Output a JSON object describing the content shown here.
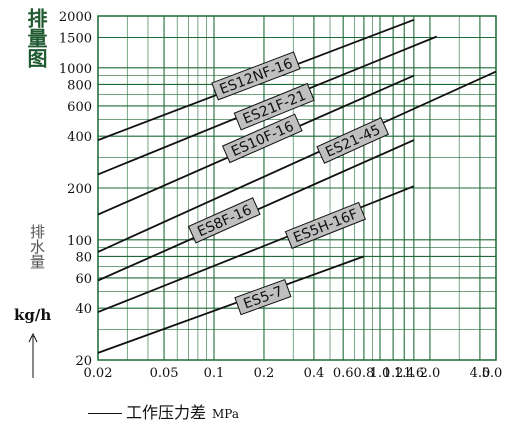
{
  "title": "排量图",
  "ylabel": "排水量",
  "yunit": "kg/h",
  "xlabel": "工作压力差",
  "xunit": "MPa",
  "colors": {
    "grid": "#1f6b38",
    "curve": "#111111",
    "label_fill": "#bfbfbf"
  },
  "chart_data": {
    "type": "line",
    "x_scale": "log",
    "y_scale": "log",
    "xlim": [
      0.02,
      5.0
    ],
    "ylim": [
      20,
      2000
    ],
    "x_ticks": [
      {
        "v": 0.02,
        "t": "0.02"
      },
      {
        "v": 0.05,
        "t": "0.05"
      },
      {
        "v": 0.1,
        "t": "0.1"
      },
      {
        "v": 0.2,
        "t": "0.2"
      },
      {
        "v": 0.4,
        "t": "0.4"
      },
      {
        "v": 0.6,
        "t": "0.6"
      },
      {
        "v": 0.8,
        "t": "0.8"
      },
      {
        "v": 1.0,
        "t": "1.0"
      },
      {
        "v": 1.2,
        "t": "1.2"
      },
      {
        "v": 1.4,
        "t": "1.4"
      },
      {
        "v": 1.6,
        "t": "1.6"
      },
      {
        "v": 2.0,
        "t": "2.0"
      },
      {
        "v": 4.0,
        "t": "4.0"
      },
      {
        "v": 5.0,
        "t": "5.0"
      }
    ],
    "y_ticks": [
      {
        "v": 20,
        "t": "20"
      },
      {
        "v": 40,
        "t": "40"
      },
      {
        "v": 60,
        "t": "60"
      },
      {
        "v": 80,
        "t": "80"
      },
      {
        "v": 100,
        "t": "100"
      },
      {
        "v": 200,
        "t": "200"
      },
      {
        "v": 400,
        "t": "400"
      },
      {
        "v": 600,
        "t": "600"
      },
      {
        "v": 800,
        "t": "800"
      },
      {
        "v": 1000,
        "t": "1000"
      },
      {
        "v": 1500,
        "t": "1500"
      },
      {
        "v": 2000,
        "t": "2000"
      }
    ],
    "minor_x": [
      0.03,
      0.04,
      0.06,
      0.07,
      0.08,
      0.09,
      0.3,
      0.5,
      0.7,
      0.9,
      3.0
    ],
    "minor_y": [
      30,
      50,
      70,
      90,
      300,
      500,
      700,
      900
    ],
    "grid": true,
    "series": [
      {
        "name": "ES12NF-16",
        "x": [
          0.02,
          1.6
        ],
        "y": [
          380,
          1900
        ]
      },
      {
        "name": "ES21F-21",
        "x": [
          0.02,
          2.2
        ],
        "y": [
          240,
          1520
        ]
      },
      {
        "name": "ES10F-16",
        "x": [
          0.02,
          1.6
        ],
        "y": [
          140,
          900
        ]
      },
      {
        "name": "ES21-45",
        "x": [
          0.02,
          5.0
        ],
        "y": [
          85,
          950
        ]
      },
      {
        "name": "ES8F-16",
        "x": [
          0.02,
          1.6
        ],
        "y": [
          58,
          380
        ]
      },
      {
        "name": "ES5H-16F",
        "x": [
          0.02,
          1.6
        ],
        "y": [
          38,
          205
        ]
      },
      {
        "name": "ES5-7",
        "x": [
          0.02,
          0.8
        ],
        "y": [
          22,
          80
        ]
      }
    ]
  }
}
